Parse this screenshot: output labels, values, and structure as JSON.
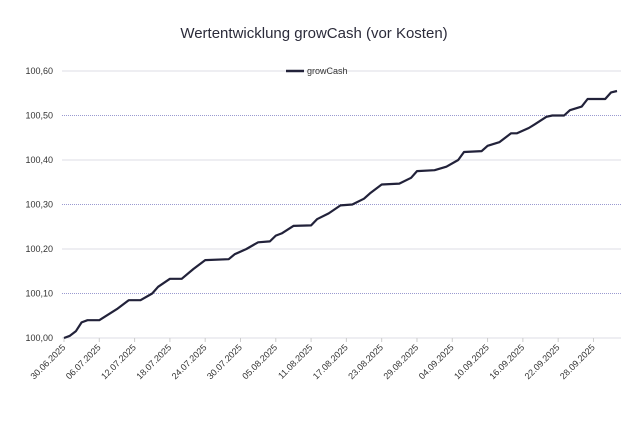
{
  "chart_data": {
    "type": "line",
    "title": "Wertentwicklung growCash (vor Kosten)",
    "xlabel": "",
    "ylabel": "",
    "x_unit": "days since 30.06.2025",
    "xlim": [
      0,
      94
    ],
    "ylim": [
      100.0,
      100.6
    ],
    "y_ticks": [
      100.0,
      100.1,
      100.2,
      100.3,
      100.4,
      100.5,
      100.6
    ],
    "y_tick_labels": [
      "100,00",
      "100,10",
      "100,20",
      "100,30",
      "100,40",
      "100,50",
      "100,60"
    ],
    "x_ticks": [
      0,
      6,
      12,
      18,
      24,
      30,
      36,
      42,
      48,
      54,
      60,
      66,
      72,
      78,
      84,
      90
    ],
    "x_tick_labels": [
      "30.06.2025",
      "06.07.2025",
      "12.07.2025",
      "18.07.2025",
      "24.07.2025",
      "30.07.2025",
      "05.08.2025",
      "11.08.2025",
      "17.08.2025",
      "23.08.2025",
      "29.08.2025",
      "04.09.2025",
      "10.09.2025",
      "16.09.2025",
      "22.09.2025",
      "28.09.2025"
    ],
    "legend": {
      "placement": "top-center",
      "entries": [
        "growCash"
      ]
    },
    "grid": true,
    "series": [
      {
        "name": "growCash",
        "color": "#22223a",
        "x": [
          0,
          1,
          2,
          3,
          4,
          6,
          9,
          11,
          13,
          15,
          16,
          18,
          20,
          22,
          24,
          28,
          29,
          31,
          33,
          35,
          36,
          37,
          39,
          42,
          43,
          45,
          47,
          49,
          51,
          52,
          54,
          57,
          59,
          60,
          63,
          65,
          67,
          68,
          71,
          72,
          74,
          76,
          77,
          79,
          80,
          82,
          83,
          85,
          86,
          88,
          89,
          92,
          93,
          94
        ],
        "values": [
          100.0,
          100.005,
          100.015,
          100.035,
          100.04,
          100.04,
          100.065,
          100.085,
          100.085,
          100.1,
          100.115,
          100.133,
          100.133,
          100.155,
          100.175,
          100.177,
          100.188,
          100.2,
          100.215,
          100.217,
          100.23,
          100.235,
          100.252,
          100.253,
          100.267,
          100.28,
          100.298,
          100.3,
          100.313,
          100.325,
          100.345,
          100.347,
          100.36,
          100.375,
          100.377,
          100.385,
          100.4,
          100.418,
          100.42,
          100.432,
          100.44,
          100.46,
          100.46,
          100.472,
          100.48,
          100.497,
          100.5,
          100.5,
          100.512,
          100.52,
          100.537,
          100.537,
          100.552,
          100.555
        ]
      }
    ]
  }
}
